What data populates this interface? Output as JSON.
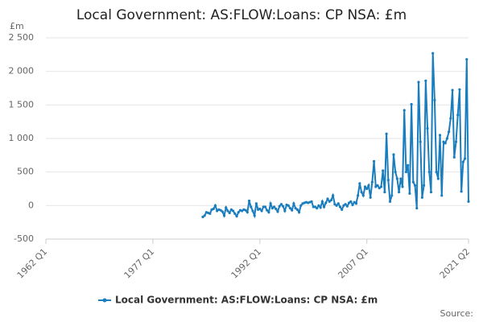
{
  "chart_data": {
    "type": "line",
    "title": "Local Government: AS:FLOW:Loans: CP NSA: £m",
    "y_label": "£m",
    "source": "Source:",
    "categories": [
      "1962 Q1",
      null,
      null,
      null,
      null,
      null,
      null,
      null,
      null,
      null,
      null,
      null,
      null,
      null,
      null,
      null,
      null,
      null,
      null,
      null,
      null,
      null,
      null,
      null,
      null,
      null,
      null,
      null,
      null,
      null,
      null,
      null,
      null,
      null,
      null,
      null,
      null,
      null,
      null,
      null,
      null,
      null,
      null,
      null,
      null,
      null,
      null,
      null,
      null,
      null,
      null,
      null,
      null,
      null,
      null,
      null,
      null,
      null,
      null,
      null,
      "1977 Q1",
      null,
      null,
      null,
      null,
      null,
      null,
      null,
      null,
      null,
      null,
      null,
      null,
      null,
      null,
      null,
      null,
      null,
      null,
      null,
      null,
      null,
      null,
      null,
      null,
      null,
      null,
      null,
      null,
      null,
      null,
      null,
      null,
      null,
      null,
      null,
      null,
      null,
      null,
      null,
      null,
      null,
      null,
      null,
      null,
      null,
      null,
      null,
      null,
      null,
      null,
      null,
      null,
      null,
      null,
      null,
      null,
      null,
      null,
      null,
      "1992 Q1",
      null,
      null,
      null,
      null,
      null,
      null,
      null,
      null,
      null,
      null,
      null,
      null,
      null,
      null,
      null,
      null,
      null,
      null,
      null,
      null,
      null,
      null,
      null,
      null,
      null,
      null,
      null,
      null,
      null,
      null,
      null,
      null,
      null,
      null,
      null,
      null,
      null,
      null,
      null,
      null,
      null,
      null,
      null,
      null,
      null,
      null,
      null,
      null,
      null,
      null,
      null,
      null,
      null,
      null,
      null,
      null,
      null,
      null,
      null,
      "2007 Q1",
      null,
      null,
      null,
      null,
      null,
      null,
      null,
      null,
      null,
      null,
      null,
      null,
      null,
      null,
      null,
      null,
      null,
      null,
      null,
      null,
      null,
      null,
      null,
      null,
      null,
      null,
      null,
      null,
      null,
      null,
      null,
      null,
      null,
      null,
      null,
      null,
      null,
      null,
      null,
      null,
      null,
      null,
      null,
      null,
      null,
      null,
      null,
      null,
      null,
      null,
      null,
      null,
      null,
      null,
      null,
      null,
      "2021 Q2"
    ],
    "series": [
      {
        "name": "Local Government: AS:FLOW:Loans: CP NSA: £m",
        "color": "#1a7dbd",
        "values": [
          null,
          null,
          null,
          null,
          null,
          null,
          null,
          null,
          null,
          null,
          null,
          null,
          null,
          null,
          null,
          null,
          null,
          null,
          null,
          null,
          null,
          null,
          null,
          null,
          null,
          null,
          null,
          null,
          null,
          null,
          null,
          null,
          null,
          null,
          null,
          null,
          null,
          null,
          null,
          null,
          null,
          null,
          null,
          null,
          null,
          null,
          null,
          null,
          null,
          null,
          null,
          null,
          null,
          null,
          null,
          null,
          null,
          null,
          null,
          null,
          null,
          null,
          null,
          null,
          null,
          null,
          null,
          null,
          null,
          null,
          null,
          null,
          null,
          null,
          null,
          null,
          null,
          null,
          null,
          null,
          null,
          null,
          null,
          null,
          null,
          null,
          null,
          null,
          -170,
          -150,
          -100,
          -110,
          -120,
          -60,
          -50,
          0,
          -80,
          -60,
          -70,
          -90,
          -150,
          -30,
          -80,
          -110,
          -60,
          -80,
          -120,
          -160,
          -100,
          -70,
          -80,
          -60,
          -70,
          -100,
          70,
          -20,
          -80,
          -150,
          30,
          -60,
          -50,
          -80,
          -20,
          -20,
          -70,
          -100,
          30,
          -40,
          -20,
          -50,
          -90,
          -10,
          20,
          -10,
          -80,
          10,
          0,
          -40,
          -70,
          30,
          -40,
          -60,
          -100,
          0,
          30,
          40,
          50,
          40,
          50,
          60,
          -20,
          -20,
          -40,
          0,
          -30,
          60,
          -20,
          40,
          100,
          60,
          80,
          150,
          20,
          0,
          30,
          -20,
          -60,
          0,
          20,
          -10,
          40,
          60,
          10,
          50,
          30,
          150,
          330,
          200,
          150,
          280,
          250,
          300,
          120,
          350,
          660,
          280,
          300,
          260,
          280,
          520,
          200,
          1070,
          380,
          60,
          150,
          760,
          500,
          400,
          200,
          400,
          280,
          1420,
          500,
          600,
          180,
          1510,
          350,
          300,
          -40,
          1840,
          950,
          120,
          300,
          1860,
          1150,
          500,
          200,
          2270,
          1570,
          500,
          400,
          1050,
          150,
          950,
          930,
          1000,
          1100,
          1300,
          1720,
          720,
          950,
          1350,
          1730,
          210,
          650,
          700,
          2180,
          60
        ]
      }
    ],
    "ylim": [
      -500,
      2500
    ],
    "yticks": [
      -500,
      0,
      500,
      {
        "value": 1000,
        "label": "1 000"
      },
      {
        "value": 1500,
        "label": "1 500"
      },
      {
        "value": 2000,
        "label": "2 000"
      },
      {
        "value": 2500,
        "label": "2 500"
      }
    ],
    "grid": true,
    "legend": "bottom"
  }
}
